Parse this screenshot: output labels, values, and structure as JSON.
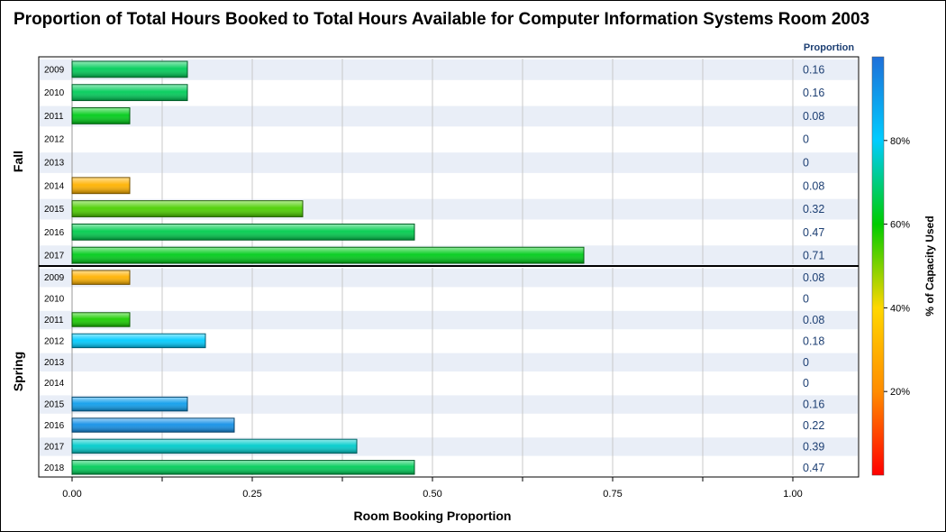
{
  "chart_data": {
    "type": "bar",
    "orientation": "horizontal",
    "title": "Proportion of Total Hours Booked to Total Hours Available for Computer Information Systems Room 2003",
    "xlabel": "Room Booking Proportion",
    "value_column_header": "Proportion",
    "colorbar_label": "% of Capacity Used",
    "xlim": [
      0,
      1.0
    ],
    "x_ticks": [
      "0.00",
      "0.25",
      "0.50",
      "0.75",
      "1.00"
    ],
    "colorbar_ticks": [
      "20%",
      "40%",
      "60%",
      "80%"
    ],
    "colorbar_range": [
      0,
      100
    ],
    "colorscale": [
      "#ff0000",
      "#ff8c00",
      "#ffd700",
      "#00cc00",
      "#00ccff",
      "#1e6fd9"
    ],
    "panels": [
      {
        "name": "Fall",
        "rows": [
          {
            "year": "2009",
            "value": 0.16,
            "label": "0.16",
            "capacity_pct": 67
          },
          {
            "year": "2010",
            "value": 0.16,
            "label": "0.16",
            "capacity_pct": 67
          },
          {
            "year": "2011",
            "value": 0.08,
            "label": "0.08",
            "capacity_pct": 62
          },
          {
            "year": "2012",
            "value": 0,
            "label": "0",
            "capacity_pct": null
          },
          {
            "year": "2013",
            "value": 0,
            "label": "0",
            "capacity_pct": null
          },
          {
            "year": "2014",
            "value": 0.08,
            "label": "0.08",
            "capacity_pct": 30
          },
          {
            "year": "2015",
            "value": 0.32,
            "label": "0.32",
            "capacity_pct": 54
          },
          {
            "year": "2016",
            "value": 0.475,
            "label": "0.47",
            "capacity_pct": 66
          },
          {
            "year": "2017",
            "value": 0.71,
            "label": "0.71",
            "capacity_pct": 62
          }
        ]
      },
      {
        "name": "Spring",
        "rows": [
          {
            "year": "2009",
            "value": 0.08,
            "label": "0.08",
            "capacity_pct": 30
          },
          {
            "year": "2010",
            "value": 0,
            "label": "0",
            "capacity_pct": null
          },
          {
            "year": "2011",
            "value": 0.08,
            "label": "0.08",
            "capacity_pct": 58
          },
          {
            "year": "2012",
            "value": 0.185,
            "label": "0.18",
            "capacity_pct": 80
          },
          {
            "year": "2013",
            "value": 0,
            "label": "0",
            "capacity_pct": null
          },
          {
            "year": "2014",
            "value": 0,
            "label": "0",
            "capacity_pct": null
          },
          {
            "year": "2015",
            "value": 0.16,
            "label": "0.16",
            "capacity_pct": 90
          },
          {
            "year": "2016",
            "value": 0.225,
            "label": "0.22",
            "capacity_pct": 93
          },
          {
            "year": "2017",
            "value": 0.395,
            "label": "0.39",
            "capacity_pct": 76
          },
          {
            "year": "2018",
            "value": 0.475,
            "label": "0.47",
            "capacity_pct": 67
          }
        ]
      }
    ]
  }
}
